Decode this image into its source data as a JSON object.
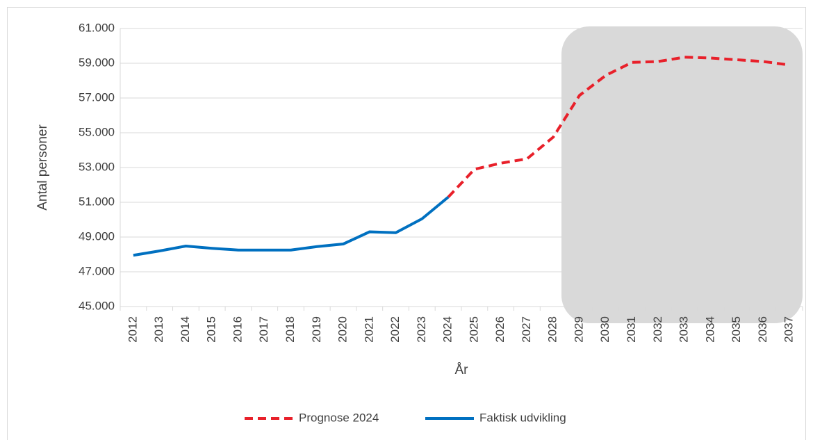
{
  "chart_data": {
    "type": "line",
    "y_label": "Antal personer",
    "x_label": "År",
    "categories": [
      "2012",
      "2013",
      "2014",
      "2015",
      "2016",
      "2017",
      "2018",
      "2019",
      "2020",
      "2021",
      "2022",
      "2023",
      "2024",
      "2025",
      "2026",
      "2027",
      "2028",
      "2029",
      "2030",
      "2031",
      "2032",
      "2033",
      "2034",
      "2035",
      "2036",
      "2037"
    ],
    "series": [
      {
        "name": "Prognose 2024",
        "color": "#e8202a",
        "dashed": true,
        "values": [
          null,
          null,
          null,
          null,
          null,
          null,
          null,
          null,
          null,
          null,
          null,
          null,
          51300,
          52900,
          53250,
          53500,
          54750,
          57150,
          58300,
          59050,
          59100,
          59350,
          59300,
          59200,
          59100,
          58900
        ]
      },
      {
        "name": "Faktisk udvikling",
        "color": "#0070c0",
        "dashed": false,
        "values": [
          47950,
          48200,
          48480,
          48350,
          48250,
          48250,
          48250,
          48450,
          48600,
          49300,
          49250,
          50050,
          51300,
          null,
          null,
          null,
          null,
          null,
          null,
          null,
          null,
          null,
          null,
          null,
          null,
          null
        ]
      }
    ],
    "ylim": [
      45000,
      61000
    ],
    "yticks": [
      {
        "value": 45000,
        "label": "45.000"
      },
      {
        "value": 47000,
        "label": "47.000"
      },
      {
        "value": 49000,
        "label": "49.000"
      },
      {
        "value": 51000,
        "label": "51.000"
      },
      {
        "value": 53000,
        "label": "53.000"
      },
      {
        "value": 55000,
        "label": "55.000"
      },
      {
        "value": 57000,
        "label": "57.000"
      },
      {
        "value": 59000,
        "label": "59.000"
      },
      {
        "value": 61000,
        "label": "61.000"
      }
    ],
    "grid": true,
    "legend": "bottom"
  }
}
